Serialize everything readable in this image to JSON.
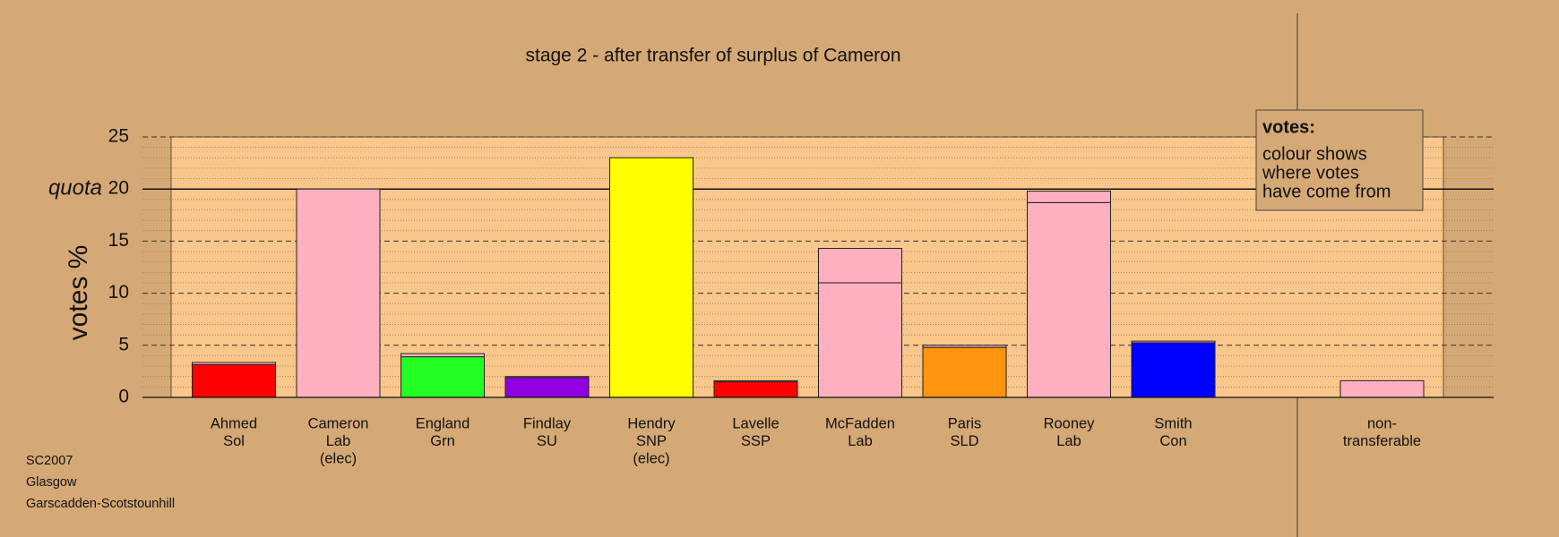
{
  "chart_data": {
    "type": "bar",
    "stacked": true,
    "title": "stage 2 - after transfer of surplus of Cameron",
    "y_label": "votes %",
    "categories": [
      [
        "Ahmed",
        "Sol"
      ],
      [
        "Cameron",
        "Lab",
        "(elec)"
      ],
      [
        "England",
        "Grn"
      ],
      [
        "Findlay",
        "SU"
      ],
      [
        "Hendry",
        "SNP",
        "(elec)"
      ],
      [
        "Lavelle",
        "SSP"
      ],
      [
        "McFadden",
        "Lab"
      ],
      [
        "Paris",
        "SLD"
      ],
      [
        "Rooney",
        "Lab"
      ],
      [
        "Smith",
        "Con"
      ],
      [
        "non-",
        "transferable"
      ]
    ],
    "series": [
      {
        "colors": [
          "#ff0000",
          "#ffb0c0",
          "#22ff22",
          "#9000e0",
          "#ffff00",
          "#ff0000",
          "#ffb0c0",
          "#ff9410",
          "#ffb0c0",
          "#0000ff",
          "#ffb0c0"
        ],
        "values": [
          3.15,
          20,
          3.9,
          1.9,
          23,
          1.5,
          11,
          4.8,
          18.7,
          5.25,
          1.6
        ]
      },
      {
        "color": "#ffb0c0",
        "values": [
          0.2,
          null,
          0.3,
          0.1,
          null,
          0.1,
          3.3,
          0.2,
          1.1,
          0.15,
          null
        ]
      }
    ],
    "ylim": [
      0,
      25
    ],
    "yticks": [
      0,
      5,
      10,
      15,
      20,
      25
    ],
    "grid": true,
    "quota": {
      "value": 20,
      "label": "quota"
    },
    "legend_box": {
      "title": "votes:",
      "lines": [
        "colour shows",
        "where votes",
        "have come from"
      ]
    },
    "footer": [
      "SC2007",
      "Glasgow",
      "Garscadden-Scotstounhill"
    ]
  }
}
